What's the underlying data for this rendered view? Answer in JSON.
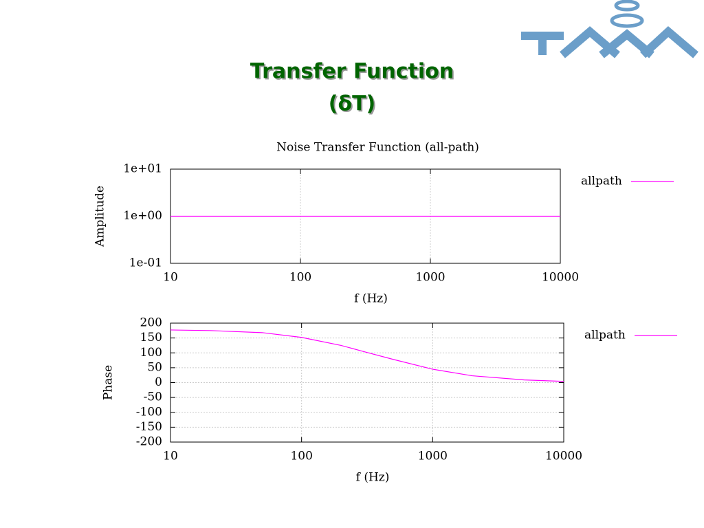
{
  "slide": {
    "title": "Transfer Function",
    "subtitle": "(δT)"
  },
  "chart_data": [
    {
      "type": "line",
      "title": "Noise Transfer Function (all-path)",
      "x_label": "f (Hz)",
      "y_label": "Amplitude",
      "x_scale": "log",
      "y_scale": "log",
      "grid": true,
      "legend": "right",
      "xlim": [
        10,
        10000
      ],
      "xticks": [
        10,
        100,
        1000,
        10000
      ],
      "ylim": [
        0.1,
        10
      ],
      "yticks": [
        {
          "value": 10,
          "label": "1e+01"
        },
        {
          "value": 1,
          "label": "1e+00"
        },
        {
          "value": 0.1,
          "label": "1e-01"
        }
      ],
      "x": [
        10,
        100,
        1000,
        10000
      ],
      "series": [
        {
          "name": "allpath",
          "color": "#ff00ff",
          "values": [
            1,
            1,
            1,
            1
          ]
        }
      ]
    },
    {
      "type": "line",
      "x_label": "f (Hz)",
      "y_label": "Phase",
      "x_scale": "log",
      "y_scale": "linear",
      "grid": true,
      "legend": "right",
      "xlim": [
        10,
        10000
      ],
      "xticks": [
        10,
        100,
        1000,
        10000
      ],
      "ylim": [
        -200,
        200
      ],
      "yticks": [
        200,
        150,
        100,
        50,
        0,
        -50,
        -100,
        -150,
        -200
      ],
      "x": [
        10,
        20,
        50,
        100,
        200,
        300,
        500,
        1000,
        2000,
        5000,
        10000
      ],
      "series": [
        {
          "name": "allpath",
          "color": "#ff00ff",
          "values": [
            177,
            175,
            168,
            152,
            125,
            104,
            78,
            45,
            23,
            9,
            4
          ]
        }
      ]
    }
  ]
}
